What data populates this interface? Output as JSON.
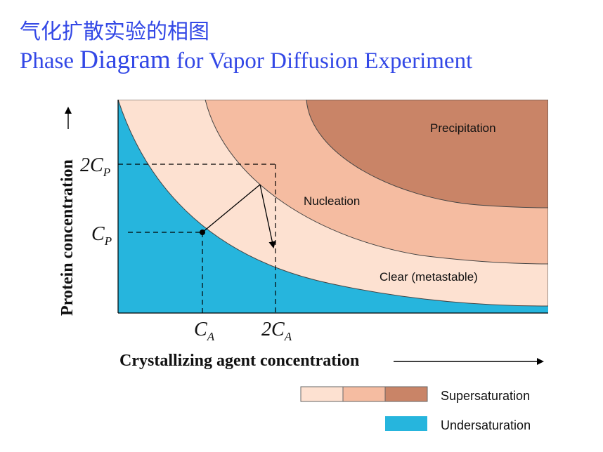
{
  "title": {
    "cn": "气化扩散实验的相图",
    "en_part1": "Phase ",
    "en_part2": "Diagram",
    "en_part3": " for Vapor Diffusion Experiment"
  },
  "axes": {
    "ylabel": "Protein concentration",
    "xlabel": "Crystallizing agent concentration",
    "y_ticks": {
      "cp": "C",
      "cp_sub": "P",
      "two_cp": "2C",
      "two_cp_sub": "P"
    },
    "x_ticks": {
      "ca": "C",
      "ca_sub": "A",
      "two_ca": "2C",
      "two_ca_sub": "A"
    }
  },
  "regions": {
    "precipitation": "Precipitation",
    "nucleation": "Nucleation",
    "clear": "Clear (metastable)"
  },
  "legend": {
    "supersaturation": "Supersaturation",
    "undersaturation": "Undersaturation"
  },
  "colors": {
    "undersaturation": "#26b5dd",
    "clear": "#fde1d1",
    "nucleation": "#f5bca1",
    "precipitation": "#c98467",
    "title": "#3348e6"
  }
}
